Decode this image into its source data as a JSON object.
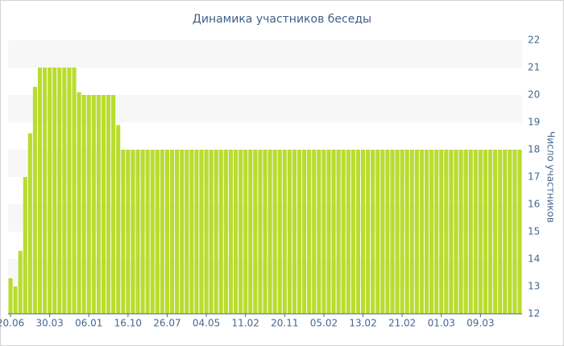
{
  "chart_data": {
    "type": "bar",
    "title": "Динамика участников беседы",
    "ylabel": "Число участников",
    "categories": [
      "20.06",
      null,
      null,
      null,
      null,
      null,
      null,
      null,
      "30.03",
      null,
      null,
      null,
      null,
      null,
      null,
      null,
      "06.01",
      null,
      null,
      null,
      null,
      null,
      null,
      null,
      "16.10",
      null,
      null,
      null,
      null,
      null,
      null,
      null,
      "26.07",
      null,
      null,
      null,
      null,
      null,
      null,
      null,
      "04.05",
      null,
      null,
      null,
      null,
      null,
      null,
      null,
      "11.02",
      null,
      null,
      null,
      null,
      null,
      null,
      null,
      "20.11",
      null,
      null,
      null,
      null,
      null,
      null,
      null,
      "05.02",
      null,
      null,
      null,
      null,
      null,
      null,
      null,
      "13.02",
      null,
      null,
      null,
      null,
      null,
      null,
      null,
      "21.02",
      null,
      null,
      null,
      null,
      null,
      null,
      null,
      "01.03",
      null,
      null,
      null,
      null,
      null,
      null,
      null,
      "09.03",
      null,
      null,
      null,
      null,
      null,
      null,
      null,
      null
    ],
    "values": [
      13.3,
      13.0,
      14.3,
      17.0,
      18.6,
      20.3,
      21,
      21,
      21,
      21,
      21,
      21,
      21,
      21,
      20.1,
      20,
      20,
      20,
      20,
      20,
      20,
      20,
      18.9,
      18,
      18,
      18,
      18,
      18,
      18,
      18,
      18,
      18,
      18,
      18,
      18,
      18,
      18,
      18,
      18,
      18,
      18,
      18,
      18,
      18,
      18,
      18,
      18,
      18,
      18,
      18,
      18,
      18,
      18,
      18,
      18,
      18,
      18,
      18,
      18,
      18,
      18,
      18,
      18,
      18,
      18,
      18,
      18,
      18,
      18,
      18,
      18,
      18,
      18,
      18,
      18,
      18,
      18,
      18,
      18,
      18,
      18,
      18,
      18,
      18,
      18,
      18,
      18,
      18,
      18,
      18,
      18,
      18,
      18,
      18,
      18,
      18,
      18,
      18,
      18,
      18,
      18,
      18,
      18,
      18,
      18
    ],
    "color": "#b9dc2f",
    "ylim": [
      12,
      22
    ],
    "yticks": [
      12,
      13,
      14,
      15,
      16,
      17,
      18,
      19,
      20,
      21,
      22
    ],
    "yaxis_side": "right",
    "grid_bands": true
  }
}
